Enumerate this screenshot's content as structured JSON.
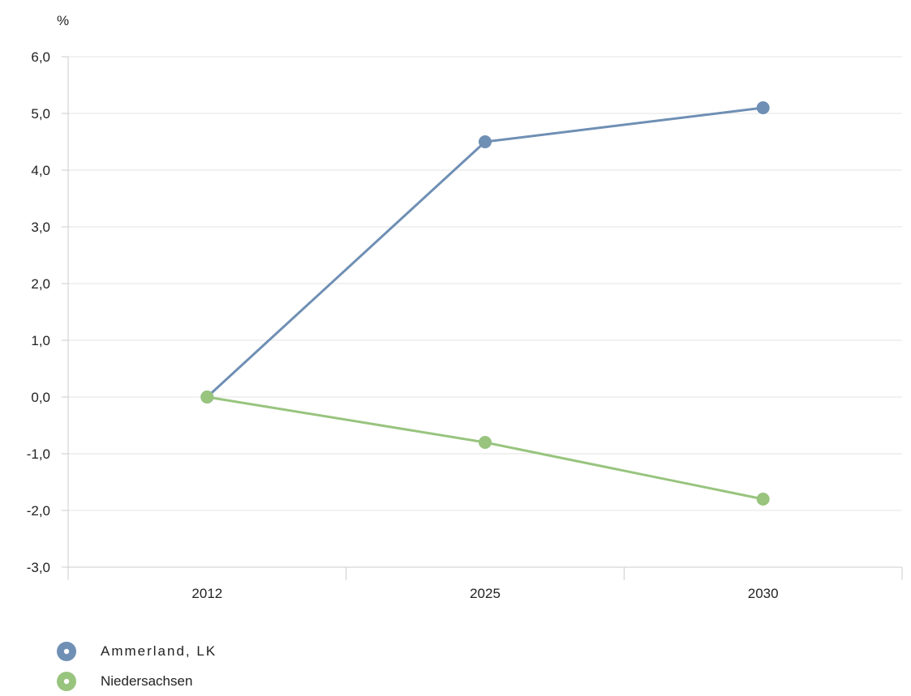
{
  "chart_data": {
    "type": "line",
    "unit_label": "%",
    "categories": [
      "2012",
      "2025",
      "2030"
    ],
    "ylim": [
      -3.0,
      6.0
    ],
    "yticks": [
      6.0,
      5.0,
      4.0,
      3.0,
      2.0,
      1.0,
      0.0,
      -1.0,
      -2.0,
      -3.0
    ],
    "ytick_labels": [
      "6,0",
      "5,0",
      "4,0",
      "3,0",
      "2,0",
      "1,0",
      "0,0",
      "-1,0",
      "-2,0",
      "-3,0"
    ],
    "grid": true,
    "legend_position": "bottom-left",
    "series": [
      {
        "name": "Ammerland, LK",
        "color": "#6f8fb4",
        "values": [
          0.0,
          4.5,
          5.1
        ]
      },
      {
        "name": "Niedersachsen",
        "color": "#98c47e",
        "values": [
          0.0,
          -0.8,
          -1.8
        ]
      }
    ]
  },
  "legend": {
    "items": [
      {
        "label": "Ammerland, LK",
        "marker_icon": "circle-marker-icon"
      },
      {
        "label": "Niedersachsen",
        "marker_icon": "circle-marker-icon"
      }
    ]
  }
}
